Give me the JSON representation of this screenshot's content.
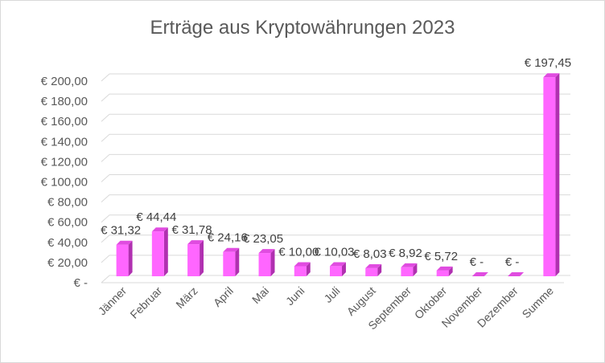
{
  "chart_data": {
    "type": "bar",
    "title": "Erträge aus Kryptowährungen 2023",
    "categories": [
      "Jänner",
      "Februar",
      "März",
      "April",
      "Mai",
      "Juni",
      "Juli",
      "August",
      "September",
      "Oktober",
      "November",
      "Dezember",
      "Summe"
    ],
    "values": [
      31.32,
      44.44,
      31.78,
      24.16,
      23.05,
      10.0,
      10.03,
      8.03,
      8.92,
      5.72,
      0,
      0,
      197.45
    ],
    "data_labels": [
      "€  31,32",
      "€  44,44",
      "€  31,78",
      "€  24,16",
      "€  23,05",
      "€  10,00",
      "€  10,03",
      "€  8,03",
      "€  8,92",
      "€  5,72",
      "€ -",
      "€ -",
      "€  197,45"
    ],
    "y_ticks": [
      0,
      20,
      40,
      60,
      80,
      100,
      120,
      140,
      160,
      180,
      200
    ],
    "y_tick_labels": [
      "€ -",
      "€ 20,00",
      "€ 40,00",
      "€ 60,00",
      "€ 80,00",
      "€ 100,00",
      "€ 120,00",
      "€ 140,00",
      "€ 160,00",
      "€ 180,00",
      "€ 200,00"
    ],
    "ylim": [
      0,
      200
    ],
    "grid": true,
    "legend": "none",
    "colors": {
      "bar_front": "#ff66ff",
      "bar_side": "#b030b0",
      "bar_top": "#e04ce0",
      "grid": "#d9d9d9"
    }
  }
}
